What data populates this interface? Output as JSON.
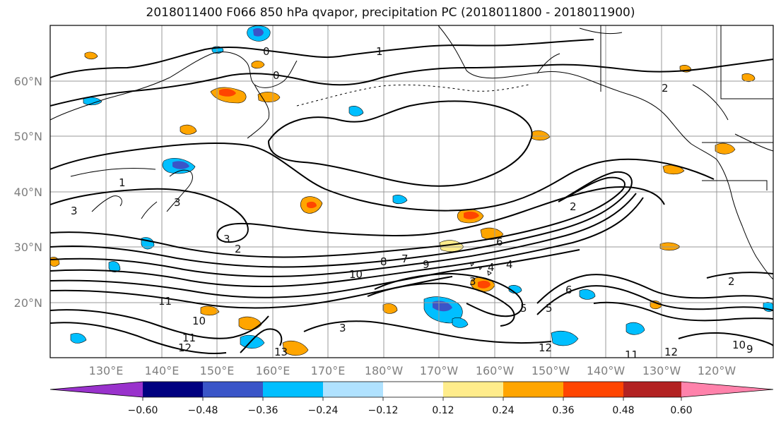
{
  "title": "2018011400 F066 850 hPa qvapor, precipitation PC (2018011800 - 2018011900)",
  "lat_labels": [
    "60°N",
    "50°N",
    "40°N",
    "30°N",
    "20°N"
  ],
  "lon_labels": [
    "130°E",
    "140°E",
    "150°E",
    "160°E",
    "170°E",
    "180°W",
    "170°W",
    "160°W",
    "150°W",
    "140°W",
    "130°W",
    "120°W"
  ],
  "contour_labels": [
    "0",
    "0",
    "1",
    "1",
    "2",
    "2",
    "3",
    "3",
    "3",
    "2",
    "4",
    "5",
    "6",
    "7",
    "8",
    "9",
    "10",
    "10",
    "11",
    "11",
    "12",
    "12",
    "13",
    "10",
    "9",
    "12",
    "11",
    "2",
    "5",
    "6",
    "4",
    "3",
    "3"
  ],
  "colorbar": {
    "ticks": [
      "−0.60",
      "−0.48",
      "−0.36",
      "−0.24",
      "−0.12",
      "0.12",
      "0.24",
      "0.36",
      "0.48",
      "0.60"
    ],
    "colors": [
      "#9932cc",
      "#000080",
      "#3a55c8",
      "#00bfff",
      "#b0e2ff",
      "#ffffff",
      "#ffec8b",
      "#ffa500",
      "#ff4500",
      "#b22222",
      "#ff82ab"
    ]
  },
  "colors": {
    "contour": "#000000",
    "grid": "#9a9a9a",
    "coast": "#000000"
  }
}
